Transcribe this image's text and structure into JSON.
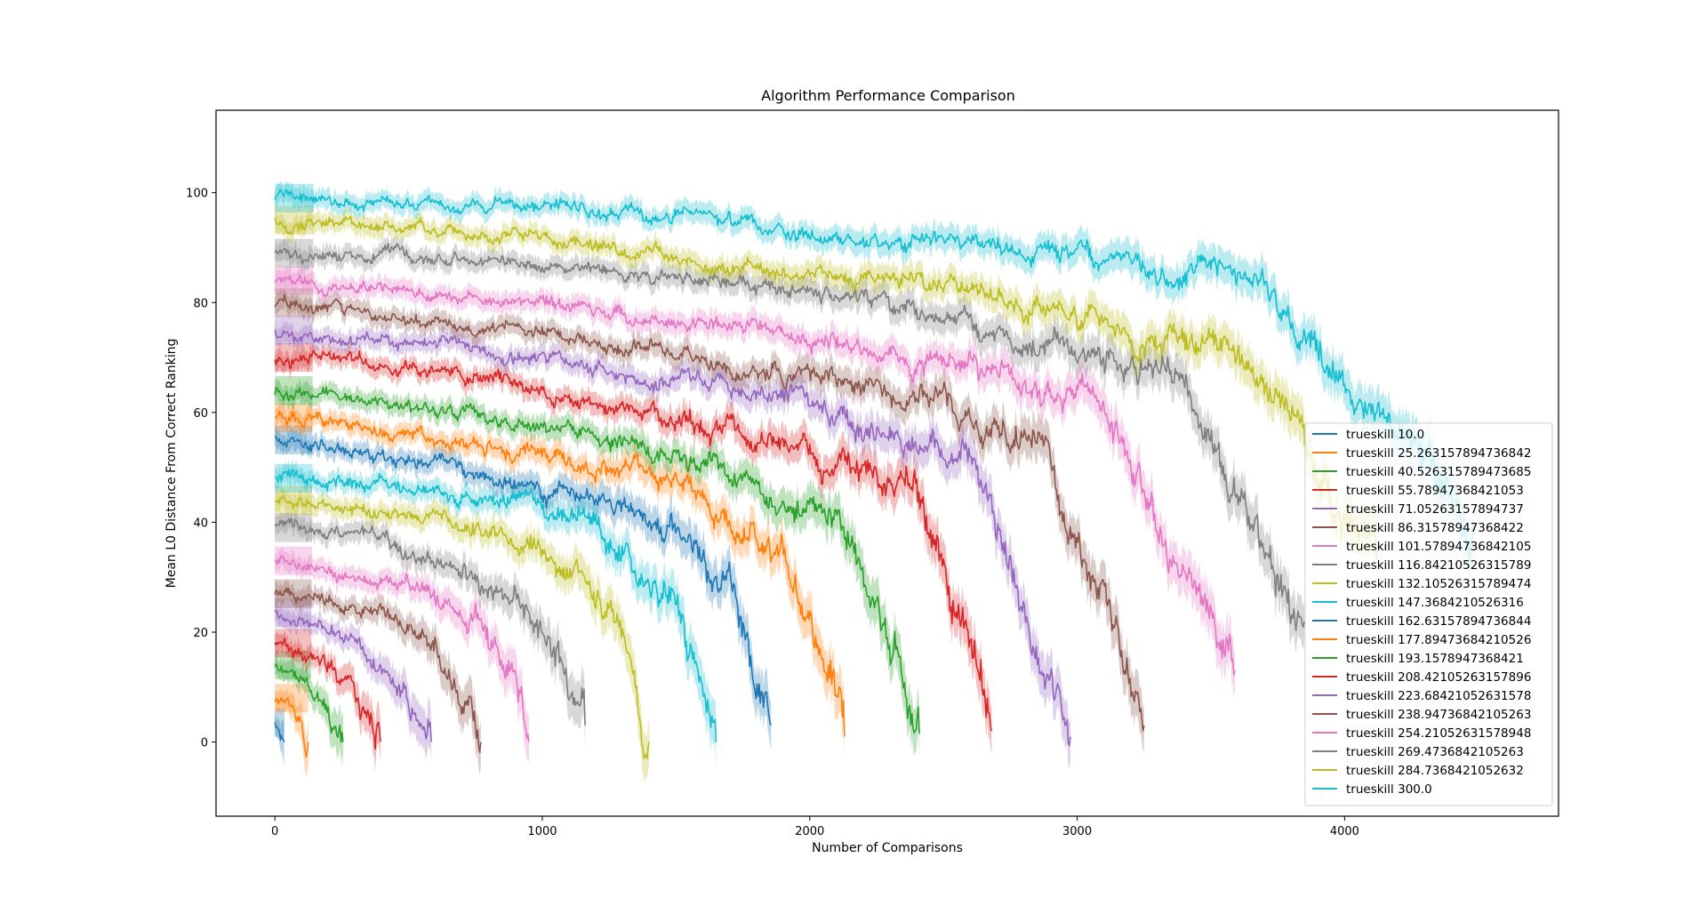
{
  "chart_data": {
    "type": "line",
    "title": "Algorithm Performance Comparison",
    "xlabel": "Number of Comparisons",
    "ylabel": "Mean L0 Distance From Correct Ranking",
    "xlim": [
      -220,
      4800
    ],
    "ylim": [
      -13.5,
      115
    ],
    "xticks": [
      0,
      1000,
      2000,
      3000,
      4000
    ],
    "yticks": [
      0,
      20,
      40,
      60,
      80,
      100
    ],
    "grid": false,
    "legend_position": "lower right",
    "shaded_band": "confidence interval around each series",
    "series": [
      {
        "name": "trueskill 10.0",
        "color": "#1f77b4",
        "x": [
          0,
          20,
          35
        ],
        "y": [
          3.5,
          2.0,
          0.0
        ]
      },
      {
        "name": "trueskill 25.263157894736842",
        "color": "#ff7f0e",
        "x": [
          0,
          50,
          100,
          125
        ],
        "y": [
          8.0,
          7.5,
          4.5,
          0.0
        ]
      },
      {
        "name": "trueskill 40.526315789473685",
        "color": "#2ca02c",
        "x": [
          0,
          80,
          160,
          220,
          255
        ],
        "y": [
          14.0,
          11.5,
          8.5,
          4.5,
          0.0
        ]
      },
      {
        "name": "trueskill 55.78947368421053",
        "color": "#d62728",
        "x": [
          0,
          100,
          200,
          300,
          370,
          395
        ],
        "y": [
          18.0,
          16.0,
          13.0,
          8.0,
          3.0,
          0.0
        ]
      },
      {
        "name": "trueskill 71.05263157894737",
        "color": "#9467bd",
        "x": [
          0,
          150,
          300,
          450,
          550,
          585
        ],
        "y": [
          23.5,
          22.0,
          19.0,
          12.5,
          5.0,
          0.0
        ]
      },
      {
        "name": "trueskill 86.31578947368422",
        "color": "#8c564b",
        "x": [
          0,
          200,
          400,
          600,
          730,
          770
        ],
        "y": [
          27.0,
          26.0,
          23.0,
          17.0,
          8.0,
          0.0
        ]
      },
      {
        "name": "trueskill 101.57894736842105",
        "color": "#e377c2",
        "x": [
          0,
          250,
          500,
          750,
          900,
          950
        ],
        "y": [
          33.0,
          31.0,
          28.0,
          21.0,
          10.0,
          0.0
        ]
      },
      {
        "name": "trueskill 116.84210526315789",
        "color": "#7f7f7f",
        "x": [
          0,
          300,
          600,
          900,
          1100,
          1160
        ],
        "y": [
          39.0,
          37.0,
          34.0,
          27.0,
          15.0,
          3.0
        ]
      },
      {
        "name": "trueskill 132.10526315789474",
        "color": "#bcbd22",
        "x": [
          0,
          350,
          700,
          1050,
          1300,
          1400
        ],
        "y": [
          44.0,
          42.0,
          40.0,
          33.0,
          20.0,
          0.0
        ]
      },
      {
        "name": "trueskill 147.3684210526316",
        "color": "#17becf",
        "x": [
          0,
          400,
          800,
          1200,
          1500,
          1650
        ],
        "y": [
          48.0,
          47.0,
          45.0,
          39.0,
          25.0,
          0.0
        ]
      },
      {
        "name": "trueskill 162.63157894736844",
        "color": "#1f77b4",
        "x": [
          0,
          450,
          900,
          1350,
          1700,
          1855
        ],
        "y": [
          55.0,
          52.0,
          48.0,
          43.0,
          30.0,
          3.0
        ]
      },
      {
        "name": "trueskill 177.89473684210526",
        "color": "#ff7f0e",
        "x": [
          0,
          500,
          1000,
          1500,
          1900,
          2130
        ],
        "y": [
          59.0,
          56.0,
          52.0,
          47.0,
          35.0,
          1.0
        ]
      },
      {
        "name": "trueskill 193.1578947368421",
        "color": "#2ca02c",
        "x": [
          0,
          550,
          1100,
          1650,
          2150,
          2410
        ],
        "y": [
          64.0,
          61.0,
          57.0,
          51.0,
          40.0,
          1.5
        ]
      },
      {
        "name": "trueskill 208.42105263157896",
        "color": "#d62728",
        "x": [
          0,
          600,
          1200,
          1800,
          2400,
          2680
        ],
        "y": [
          70.0,
          68.0,
          62.0,
          56.0,
          46.0,
          2.0
        ]
      },
      {
        "name": "trueskill 223.68421052631578",
        "color": "#9467bd",
        "x": [
          0,
          650,
          1300,
          1950,
          2650,
          2975
        ],
        "y": [
          75.0,
          72.0,
          67.0,
          62.0,
          50.0,
          1.0
        ]
      },
      {
        "name": "trueskill 238.94736842105263",
        "color": "#8c564b",
        "x": [
          0,
          700,
          1400,
          2100,
          2850,
          3250
        ],
        "y": [
          80.0,
          76.0,
          72.0,
          66.0,
          55.0,
          3.0
        ]
      },
      {
        "name": "trueskill 254.21052631578948",
        "color": "#e377c2",
        "x": [
          0,
          750,
          1500,
          2250,
          3100,
          3590
        ],
        "y": [
          84.0,
          81.0,
          77.0,
          72.0,
          61.0,
          13.0
        ]
      },
      {
        "name": "trueskill 269.4736842105263",
        "color": "#7f7f7f",
        "x": [
          0,
          800,
          1600,
          2400,
          3350,
          3850
        ],
        "y": [
          89.0,
          88.0,
          84.0,
          79.0,
          67.0,
          22.0
        ]
      },
      {
        "name": "trueskill 284.7368421052632",
        "color": "#bcbd22",
        "x": [
          0,
          850,
          1700,
          2550,
          3650,
          4120
        ],
        "y": [
          95.0,
          92.0,
          87.0,
          84.0,
          70.0,
          33.0
        ]
      },
      {
        "name": "trueskill 300.0",
        "color": "#17becf",
        "x": [
          0,
          900,
          1800,
          2700,
          3700,
          4480
        ],
        "y": [
          99.0,
          98.0,
          94.0,
          90.0,
          83.0,
          40.0
        ]
      }
    ]
  }
}
